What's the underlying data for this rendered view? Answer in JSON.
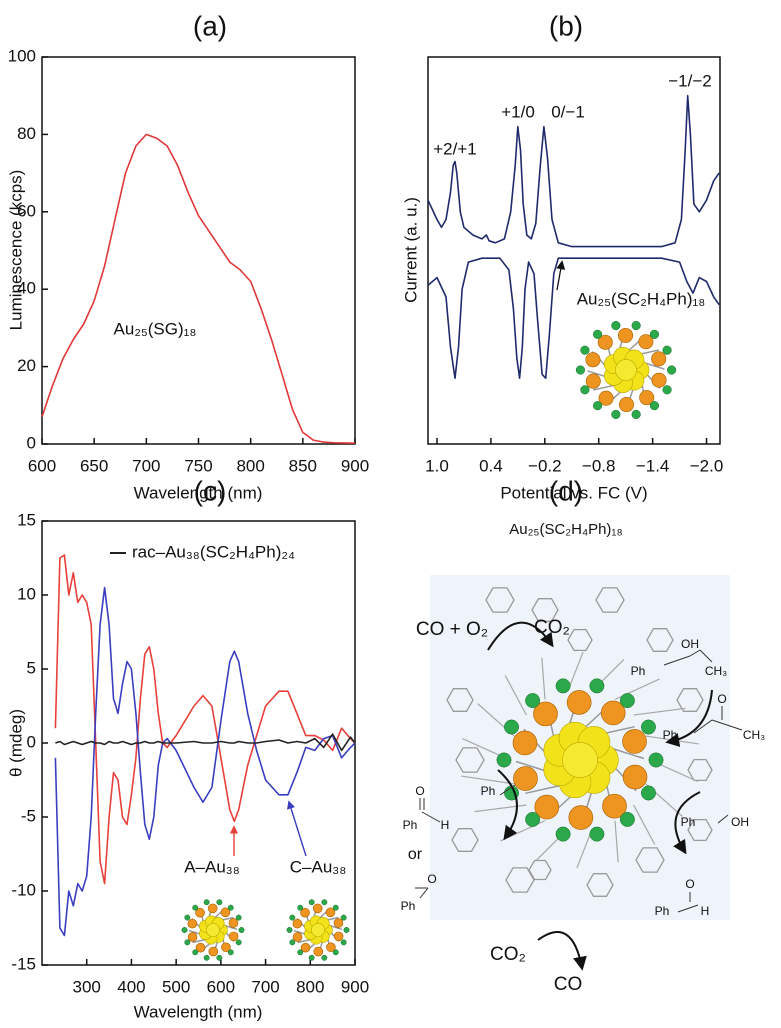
{
  "chart_data": [
    {
      "type": "line",
      "title": "(a)",
      "x_label": "Wavelength (nm)",
      "y_label": "Luminescence (kcps)",
      "annotations": [
        "Au₂₅(SG)₁₈"
      ],
      "x": [
        600,
        610,
        620,
        630,
        640,
        650,
        660,
        670,
        680,
        690,
        700,
        710,
        720,
        730,
        740,
        750,
        760,
        770,
        780,
        790,
        800,
        810,
        820,
        830,
        840,
        850,
        860,
        870,
        880,
        900
      ],
      "series": [
        {
          "color": "#e0383a",
          "values": [
            7,
            15,
            22,
            27,
            31,
            37,
            46,
            58,
            70,
            77,
            80,
            79,
            77,
            72,
            65,
            59,
            55,
            51,
            47,
            45,
            42,
            35,
            27,
            18,
            9,
            3,
            1,
            0.5,
            0.3,
            0.2
          ]
        }
      ],
      "xlim": [
        600,
        900
      ],
      "xticks": [
        600,
        650,
        700,
        750,
        800,
        850,
        900
      ],
      "ylim": [
        0,
        100
      ],
      "yticks": [
        0,
        20,
        40,
        60,
        80,
        100
      ]
    },
    {
      "type": "line",
      "title": "(b)",
      "x_label": "Potential vs. FC (V)",
      "y_label": "Current (a. u.)",
      "annotations": [
        "+2/+1",
        "+1/0",
        "0/−1",
        "−1/−2",
        "Au₂₅(SC₂H₄Ph)₁₈"
      ],
      "series": [
        {
          "color": "#1f2a6b",
          "x": [
            1.1,
            1.0,
            0.95,
            0.9,
            0.85,
            0.82,
            0.8,
            0.78,
            0.74,
            0.7,
            0.6,
            0.5,
            0.45,
            0.42,
            0.35,
            0.25,
            0.18,
            0.13,
            0.1,
            0.07,
            0.04,
            0.0,
            -0.05,
            -0.1,
            -0.15,
            -0.19,
            -0.23,
            -0.28,
            -0.35,
            -0.5,
            -1.0,
            -1.5,
            -1.65,
            -1.72,
            -1.76,
            -1.79,
            -1.82,
            -1.86,
            -1.92,
            -2.0,
            -2.08,
            -2.14
          ],
          "values": [
            63,
            58,
            56,
            58,
            65,
            72,
            73,
            70,
            60,
            56,
            54,
            53,
            54,
            52.5,
            52,
            53,
            60,
            72,
            82,
            76,
            62,
            54,
            53,
            57,
            72,
            82,
            74,
            58,
            52,
            51,
            51,
            51,
            52,
            58,
            75,
            90,
            80,
            62,
            60,
            63,
            68,
            70
          ]
        },
        {
          "color": "#1f2a6b",
          "x": [
            1.1,
            1.0,
            0.9,
            0.85,
            0.8,
            0.76,
            0.72,
            0.65,
            0.5,
            0.3,
            0.2,
            0.15,
            0.11,
            0.08,
            0.05,
            0.02,
            -0.02,
            -0.08,
            -0.12,
            -0.17,
            -0.21,
            -0.25,
            -0.3,
            -0.35,
            -0.5,
            -1.0,
            -1.5,
            -1.7,
            -1.78,
            -1.85,
            -1.92,
            -2.0,
            -2.08,
            -2.14
          ],
          "values": [
            41,
            43,
            38,
            25,
            17,
            25,
            40,
            47,
            48,
            48,
            45,
            35,
            22,
            17,
            25,
            40,
            47,
            44,
            32,
            18,
            17,
            28,
            44,
            48,
            48,
            48,
            48,
            47,
            42,
            39,
            43,
            42,
            38,
            36
          ]
        }
      ],
      "xlim": [
        1.1,
        -2.15
      ],
      "xticks": [
        {
          "value": 1,
          "label": "1.0"
        },
        0.4,
        {
          "value": -0.2,
          "label": "−0.2"
        },
        {
          "value": -0.8,
          "label": "−0.8"
        },
        {
          "value": -1.4,
          "label": "−1.4"
        },
        {
          "value": -2,
          "label": "−2.0"
        }
      ],
      "ylim": [
        0,
        100
      ]
    },
    {
      "type": "line",
      "title": "(c)",
      "x_label": "Wavelength (nm)",
      "y_label": "θ (mdeg)",
      "x": [
        230,
        240,
        250,
        260,
        270,
        280,
        290,
        300,
        310,
        320,
        330,
        340,
        350,
        360,
        370,
        380,
        390,
        400,
        410,
        420,
        430,
        440,
        450,
        460,
        470,
        480,
        500,
        540,
        560,
        580,
        600,
        620,
        630,
        640,
        660,
        680,
        700,
        730,
        750,
        770,
        790,
        810,
        830,
        850,
        870,
        890,
        900
      ],
      "series": [
        {
          "name": "A–Au₃₈",
          "color": "#e8403a",
          "values": [
            1,
            12.5,
            12.7,
            10,
            11.5,
            9.5,
            10,
            9.5,
            8,
            0,
            -8,
            -9.5,
            -5,
            -2,
            -2.5,
            -5,
            -5.5,
            -3.5,
            -1,
            3,
            6,
            6.5,
            5,
            2,
            0,
            -0.3,
            0.5,
            2.5,
            3.2,
            2.5,
            -1,
            -4.5,
            -5.3,
            -4.5,
            -1.5,
            0.5,
            2.5,
            3.5,
            3.5,
            2,
            0.5,
            0.5,
            0.2,
            -0.5,
            1,
            0.3,
            0
          ]
        },
        {
          "name": "C–Au₃₈",
          "color": "#3a3fbf",
          "values": [
            -1,
            -12.5,
            -13,
            -10,
            -11,
            -9.5,
            -10,
            -9,
            -5,
            2,
            8,
            10.5,
            8,
            3,
            2,
            4,
            5.5,
            5,
            2,
            -2,
            -5.5,
            -6.5,
            -5,
            -1.5,
            0,
            0.3,
            -0.5,
            -3,
            -4,
            -3,
            1.5,
            5.5,
            6.2,
            5.5,
            2,
            -0.5,
            -2.5,
            -3.5,
            -3.5,
            -2,
            -0.3,
            -0.5,
            0.3,
            0.5,
            -1,
            -0.3,
            0
          ]
        },
        {
          "name": "rac–Au₃₈(SC₂H₄Ph)₂₄",
          "color": "#222222",
          "values": [
            0,
            0.1,
            -0.1,
            0,
            0.1,
            0,
            -0.1,
            0,
            0.1,
            0,
            0,
            -0.1,
            0.1,
            0,
            0,
            0.1,
            0,
            -0.1,
            0,
            0,
            0.1,
            0,
            0,
            0.1,
            0,
            0,
            0,
            0.1,
            0,
            0,
            0.1,
            0,
            0,
            0.1,
            0,
            0,
            0.1,
            0.2,
            0,
            0.1,
            0,
            0.3,
            -0.3,
            0.6,
            -0.5,
            0.4,
            0
          ]
        }
      ],
      "xlim": [
        200,
        900
      ],
      "xticks": [
        300,
        400,
        500,
        600,
        700,
        800,
        900
      ],
      "ylim": [
        -15,
        15
      ],
      "yticks": [
        -15,
        -10,
        -5,
        0,
        5,
        10,
        15
      ]
    }
  ],
  "panel_d": {
    "title": "(d)",
    "subtitle": "Au₂₅(SC₂H₄Ph)₁₈",
    "labels": [
      "CO + O₂",
      "CO₂",
      "Ph",
      "OH",
      "CH₃",
      "O",
      "Ph",
      "CH₃",
      "Ph",
      "O",
      "Ph",
      "H",
      "or",
      "O",
      "Ph",
      "Ph",
      "OH",
      "O",
      "Ph",
      "H",
      "CO₂",
      "CO"
    ]
  }
}
